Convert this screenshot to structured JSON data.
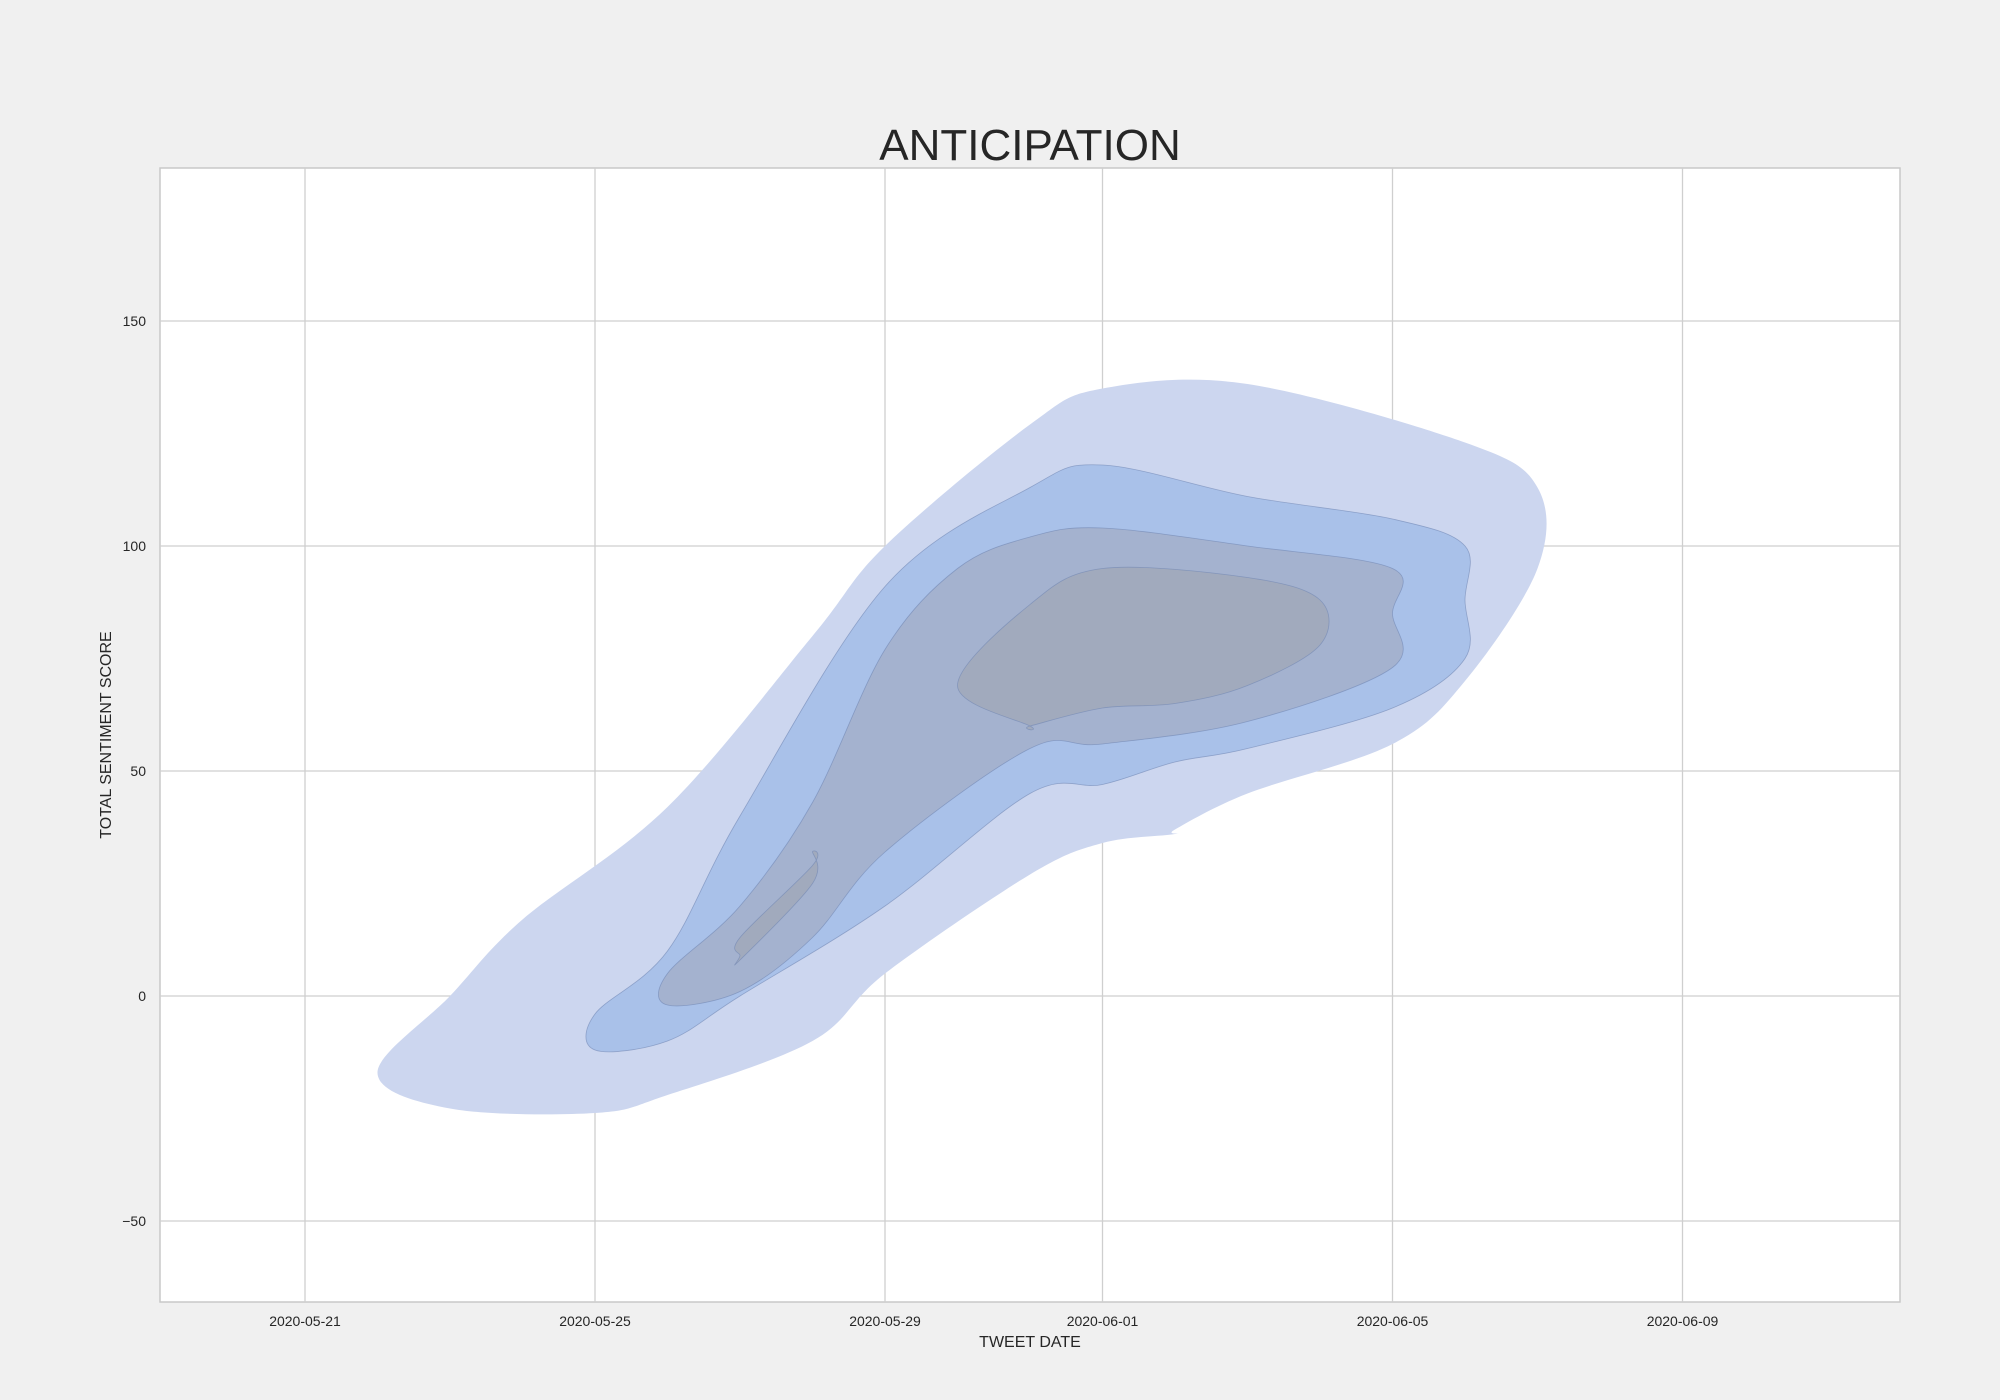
{
  "chart_data": {
    "type": "kde_contour",
    "title": "ANTICIPATION",
    "xlabel": "TWEET DATE",
    "ylabel": "TOTAL SENTIMENT SCORE",
    "x_axis": {
      "kind": "date",
      "range": [
        "2020-05-19",
        "2020-06-12"
      ],
      "ticks": [
        "2020-05-21",
        "2020-05-25",
        "2020-05-29",
        "2020-06-01",
        "2020-06-05",
        "2020-06-09"
      ]
    },
    "y_axis": {
      "range": [
        -68,
        184
      ],
      "ticks": [
        -50,
        0,
        50,
        100,
        150
      ],
      "tick_labels": [
        "−50",
        "0",
        "50",
        "100",
        "150"
      ]
    },
    "grid": true,
    "fill_color": "#4c72b0",
    "levels": [
      {
        "name": "outer",
        "color": "#ccd6ef",
        "x": [
          "2020-05-23",
          "2020-05-22",
          "2020-05-23",
          "2020-05-24",
          "2020-05-26",
          "2020-05-28",
          "2020-05-29",
          "2020-05-31",
          "2020-06-01",
          "2020-06-03",
          "2020-06-06",
          "2020-06-07",
          "2020-06-07",
          "2020-06-06",
          "2020-06-05",
          "2020-06-03",
          "2020-06-02",
          "2020-06-02",
          "2020-06-01",
          "2020-05-31",
          "2020-05-29",
          "2020-05-28",
          "2020-05-26",
          "2020-05-25"
        ],
        "y": [
          -25,
          -17,
          0,
          17,
          42,
          80,
          100,
          127,
          135,
          136,
          123,
          113,
          95,
          70,
          56,
          45,
          37,
          36,
          34,
          27,
          5,
          -10,
          -22,
          -26
        ]
      },
      {
        "name": "mid-1",
        "color": "#a9c1e9",
        "x": [
          "2020-05-25",
          "2020-05-25",
          "2020-05-26",
          "2020-05-27",
          "2020-05-29",
          "2020-05-31",
          "2020-06-01",
          "2020-06-03",
          "2020-06-05",
          "2020-06-06",
          "2020-06-06",
          "2020-06-06",
          "2020-06-05",
          "2020-06-03",
          "2020-06-02",
          "2020-06-01",
          "2020-05-31",
          "2020-05-29",
          "2020-05-27",
          "2020-05-26"
        ],
        "y": [
          -12,
          -4,
          10,
          40,
          91,
          113,
          118,
          111,
          106,
          100,
          88,
          75,
          64,
          55,
          52,
          47,
          45,
          20,
          0,
          -10
        ]
      },
      {
        "name": "mid-2",
        "color": "#a4b2cf",
        "x": [
          "2020-05-26",
          "2020-05-26",
          "2020-05-27",
          "2020-05-28",
          "2020-05-29",
          "2020-05-30",
          "2020-05-31",
          "2020-06-01",
          "2020-06-03",
          "2020-06-05",
          "2020-06-05",
          "2020-06-05",
          "2020-06-03",
          "2020-06-01",
          "2020-05-31",
          "2020-05-29",
          "2020-05-28",
          "2020-05-27"
        ],
        "y": [
          -2,
          5,
          20,
          43,
          77,
          95,
          102,
          104,
          100,
          95,
          85,
          73,
          61,
          56,
          55,
          32,
          13,
          1
        ]
      },
      {
        "name": "inner-upper",
        "color": "#a1aabd",
        "x": [
          "2020-05-31",
          "2020-05-30",
          "2020-05-31",
          "2020-06-01",
          "2020-06-03",
          "2020-06-04",
          "2020-06-04",
          "2020-06-03",
          "2020-06-02",
          "2020-06-01",
          "2020-05-31"
        ],
        "y": [
          60,
          69,
          87,
          95,
          93,
          88,
          78,
          69,
          65,
          64,
          60
        ]
      },
      {
        "name": "inner-lower",
        "color": "#a1aabd",
        "x": [
          "2020-05-27",
          "2020-05-27",
          "2020-05-28",
          "2020-05-28",
          "2020-05-28",
          "2020-05-27"
        ],
        "y": [
          9,
          13,
          29,
          32,
          25,
          8
        ]
      }
    ]
  }
}
